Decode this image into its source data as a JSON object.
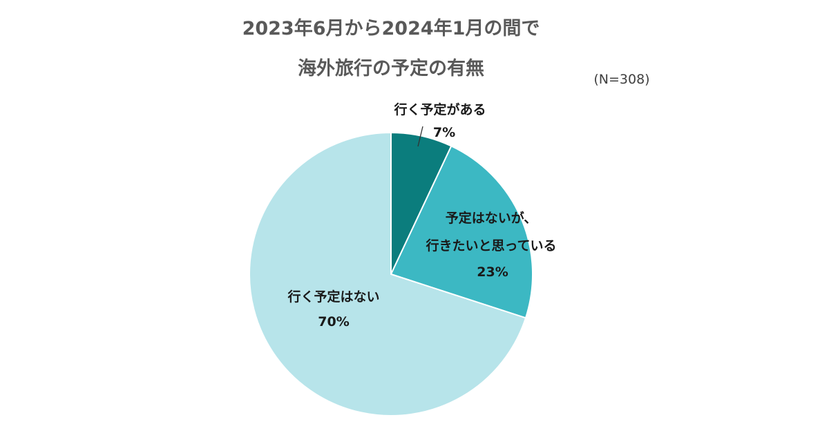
{
  "chart_data": {
    "type": "pie",
    "title": "2023年6月から2024年1月の間で",
    "subtitle": "海外旅行の予定の有無",
    "note": "(N=308)",
    "slices": [
      {
        "label_lines": [
          "行く予定がある"
        ],
        "value": 7,
        "value_label": "7%",
        "color": "#0b7d7d"
      },
      {
        "label_lines": [
          "予定はないが、",
          "行きたいと思っている"
        ],
        "value": 23,
        "value_label": "23%",
        "color": "#3cb8c3"
      },
      {
        "label_lines": [
          "行く予定はない"
        ],
        "value": 70,
        "value_label": "70%",
        "color": "#b7e4ea"
      }
    ],
    "start_angle_deg": 0,
    "direction": "clockwise"
  }
}
